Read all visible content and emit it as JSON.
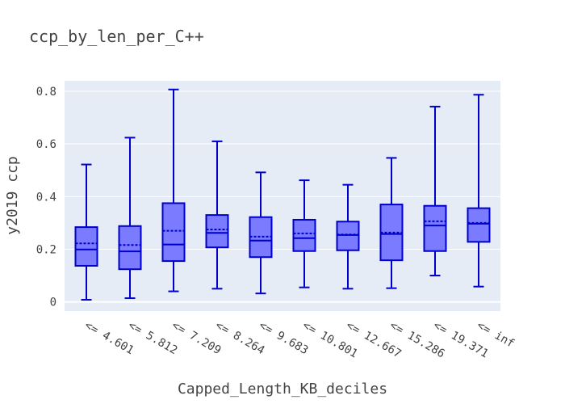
{
  "chart_data": {
    "type": "box",
    "title": "ccp_by_len_per_C++",
    "xlabel": "Capped_Length_KB_deciles",
    "ylabel": "y2019 ccp",
    "ylim": [
      -0.035,
      0.84
    ],
    "yticks": [
      0,
      0.2,
      0.4,
      0.6,
      0.8
    ],
    "ytick_labels": [
      "0",
      "0.2",
      "0.4",
      "0.6",
      "0.8"
    ],
    "grid": true,
    "legend": "none",
    "categories": [
      "<= 4.601",
      "<= 5.812",
      "<= 7.209",
      "<= 8.264",
      "<= 9.683",
      "<= 10.801",
      "<= 12.667",
      "<= 15.286",
      "<= 19.371",
      "<= inf"
    ],
    "boxes": [
      {
        "min": 0.008,
        "q1": 0.137,
        "median": 0.199,
        "q3": 0.284,
        "max": 0.522,
        "mean": 0.222
      },
      {
        "min": 0.014,
        "q1": 0.124,
        "median": 0.192,
        "q3": 0.288,
        "max": 0.624,
        "mean": 0.216
      },
      {
        "min": 0.04,
        "q1": 0.155,
        "median": 0.218,
        "q3": 0.375,
        "max": 0.807,
        "mean": 0.27
      },
      {
        "min": 0.05,
        "q1": 0.207,
        "median": 0.262,
        "q3": 0.33,
        "max": 0.61,
        "mean": 0.275
      },
      {
        "min": 0.032,
        "q1": 0.17,
        "median": 0.233,
        "q3": 0.322,
        "max": 0.492,
        "mean": 0.248
      },
      {
        "min": 0.055,
        "q1": 0.193,
        "median": 0.242,
        "q3": 0.312,
        "max": 0.462,
        "mean": 0.26
      },
      {
        "min": 0.05,
        "q1": 0.196,
        "median": 0.254,
        "q3": 0.305,
        "max": 0.445,
        "mean": 0.256
      },
      {
        "min": 0.052,
        "q1": 0.158,
        "median": 0.258,
        "q3": 0.37,
        "max": 0.547,
        "mean": 0.263
      },
      {
        "min": 0.1,
        "q1": 0.193,
        "median": 0.29,
        "q3": 0.365,
        "max": 0.742,
        "mean": 0.306
      },
      {
        "min": 0.058,
        "q1": 0.228,
        "median": 0.297,
        "q3": 0.356,
        "max": 0.787,
        "mean": 0.3
      }
    ],
    "colors": {
      "plot_bg": "#e5ecf6",
      "grid": "#ffffff",
      "box_fill": "#7b7bff",
      "line": "#0000cd",
      "text": "#444444"
    }
  }
}
